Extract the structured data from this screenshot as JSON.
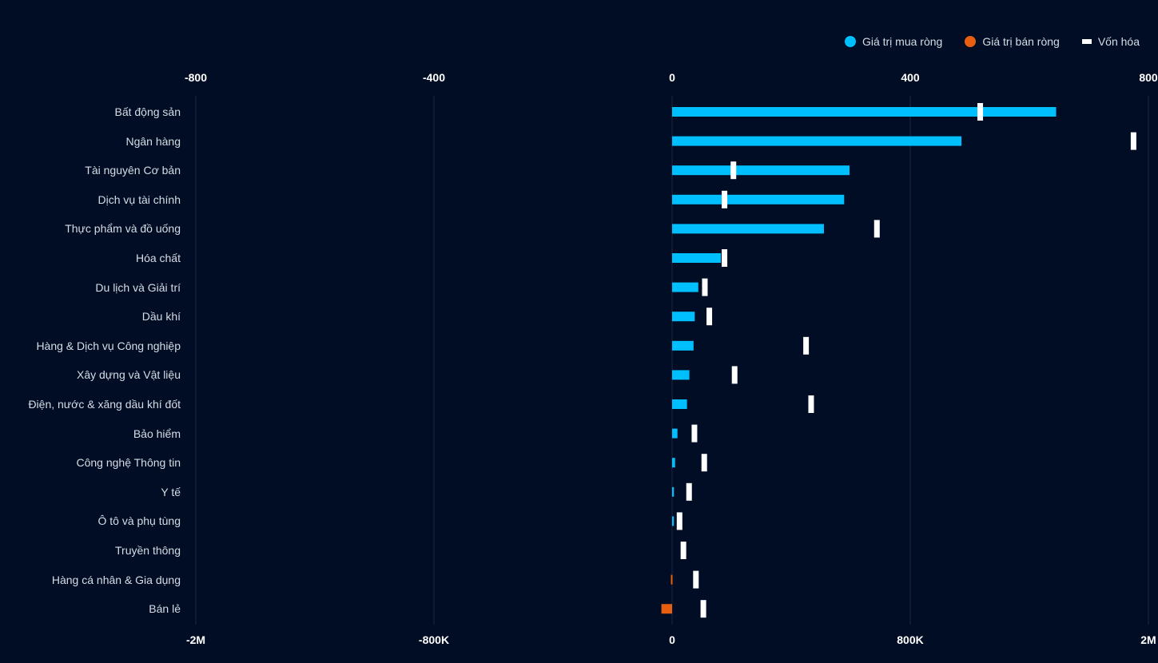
{
  "chart_data": {
    "type": "bar",
    "orientation": "horizontal",
    "categories": [
      "Bất động sản",
      "Ngân hàng",
      "Tài nguyên Cơ bản",
      "Dịch vụ tài chính",
      "Thực phẩm và đồ uống",
      "Hóa chất",
      "Du lịch và Giải trí",
      "Dầu khí",
      "Hàng & Dịch vụ Công nghiệp",
      "Xây dựng và Vật liệu",
      "Điện, nước & xăng dầu khí đốt",
      "Bảo hiểm",
      "Công nghệ Thông tin",
      "Y tế",
      "Ô tô và phụ tùng",
      "Truyền thông",
      "Hàng cá nhân & Gia dụng",
      "Bán lẻ"
    ],
    "series": [
      {
        "name": "Giá trị mua ròng",
        "color": "#00bfff",
        "axis": "top",
        "values": [
          645,
          486,
          298,
          289,
          255,
          82,
          44,
          38,
          36,
          29,
          25,
          9,
          5,
          3,
          3,
          0,
          0,
          0
        ]
      },
      {
        "name": "Giá trị bán ròng",
        "color": "#e8600f",
        "axis": "top",
        "values": [
          0,
          0,
          0,
          0,
          0,
          0,
          0,
          0,
          0,
          0,
          0,
          0,
          0,
          0,
          0,
          0,
          -2,
          -18
        ]
      },
      {
        "name": "Vốn hóa",
        "color": "#ffffff",
        "axis": "bottom",
        "values": [
          1035,
          1550,
          206,
          176,
          688,
          176,
          110,
          125,
          450,
          210,
          467,
          75,
          108,
          57,
          25,
          38,
          80,
          105
        ]
      }
    ],
    "top_axis": {
      "ticks": [
        "-800",
        "-400",
        "0",
        "400",
        "800"
      ],
      "range": [
        -800,
        800
      ]
    },
    "bottom_axis": {
      "ticks": [
        "-2M",
        "-800K",
        "0",
        "800K",
        "2M"
      ],
      "range": [
        -1600,
        1600
      ]
    },
    "grid": true,
    "legend": "top-right"
  }
}
